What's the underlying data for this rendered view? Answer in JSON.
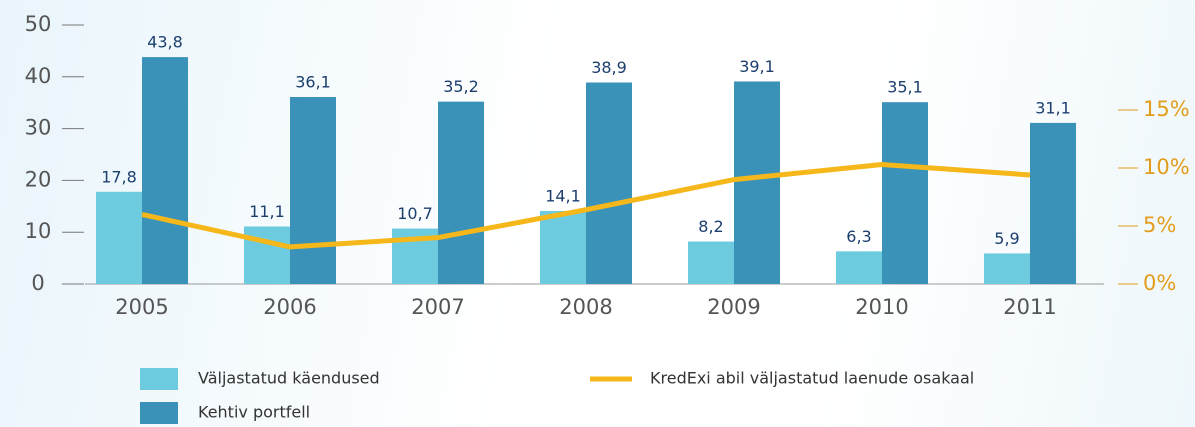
{
  "chart_data": {
    "type": "bar",
    "categories": [
      "2005",
      "2006",
      "2007",
      "2008",
      "2009",
      "2010",
      "2011"
    ],
    "series": [
      {
        "name": "Väljastatud käendused",
        "color": "#6ccbdf",
        "values": [
          17.8,
          11.1,
          10.7,
          14.1,
          8.2,
          6.3,
          5.9
        ],
        "value_labels": [
          "17,8",
          "11,1",
          "10,7",
          "14,1",
          "8,2",
          "6,3",
          "5,9"
        ]
      },
      {
        "name": "Kehtiv portfell",
        "color": "#3a92b9",
        "values": [
          43.8,
          36.1,
          35.2,
          38.9,
          39.1,
          35.1,
          31.1
        ],
        "value_labels": [
          "43,8",
          "36,1",
          "35,2",
          "38,9",
          "39,1",
          "35,1",
          "31,1"
        ]
      },
      {
        "name": "KredExi abil väljastatud laenude osakaal",
        "color": "#f5b719",
        "type": "line",
        "axis": "y2",
        "values": [
          6.0,
          3.2,
          4.0,
          6.4,
          9.0,
          10.3,
          9.4
        ]
      }
    ],
    "ylim": [
      0,
      50
    ],
    "yticks": [
      0,
      10,
      20,
      30,
      40,
      50
    ],
    "y2lim": [
      0,
      15
    ],
    "y2ticks": [
      {
        "value": 0,
        "label": "0%"
      },
      {
        "value": 5,
        "label": "5%"
      },
      {
        "value": 10,
        "label": "10%"
      },
      {
        "value": 15,
        "label": "15%"
      }
    ]
  }
}
